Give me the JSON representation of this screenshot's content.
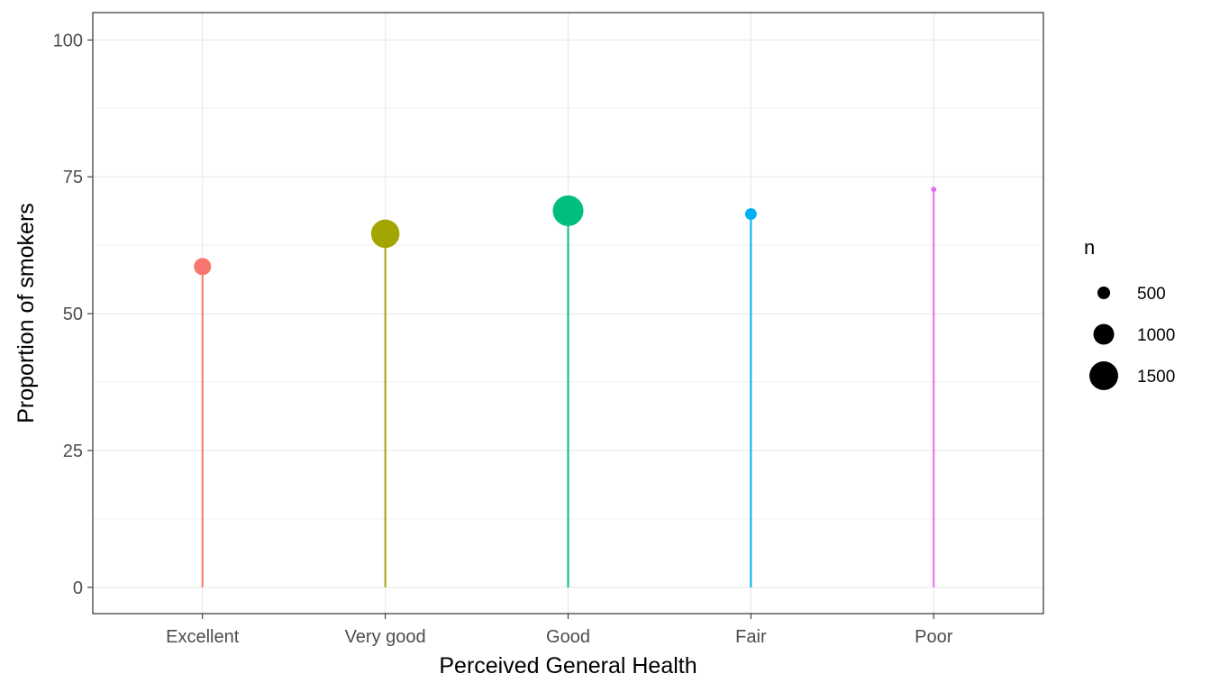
{
  "chart_data": {
    "type": "lollipop",
    "categories": [
      "Excellent",
      "Very good",
      "Good",
      "Fair",
      "Poor"
    ],
    "values": [
      58.6,
      64.6,
      68.8,
      68.2,
      72.7
    ],
    "sizes": [
      780,
      1480,
      1620,
      430,
      40
    ],
    "colors": [
      "#F8766D",
      "#A3A500",
      "#00BF7D",
      "#00B0F6",
      "#E76BF3"
    ],
    "xlabel": "Perceived General Health",
    "ylabel": "Proportion of smokers",
    "ylim": [
      -4.8,
      105
    ],
    "yticks": [
      0,
      25,
      50,
      75,
      100
    ],
    "ytick_labels": [
      "0",
      "25",
      "50",
      "75",
      "100"
    ],
    "grid": true,
    "legend": {
      "title": "n",
      "placement": "right",
      "entries": [
        {
          "label": "500",
          "value": 500
        },
        {
          "label": "1000",
          "value": 1000
        },
        {
          "label": "1500",
          "value": 1500
        }
      ]
    }
  }
}
